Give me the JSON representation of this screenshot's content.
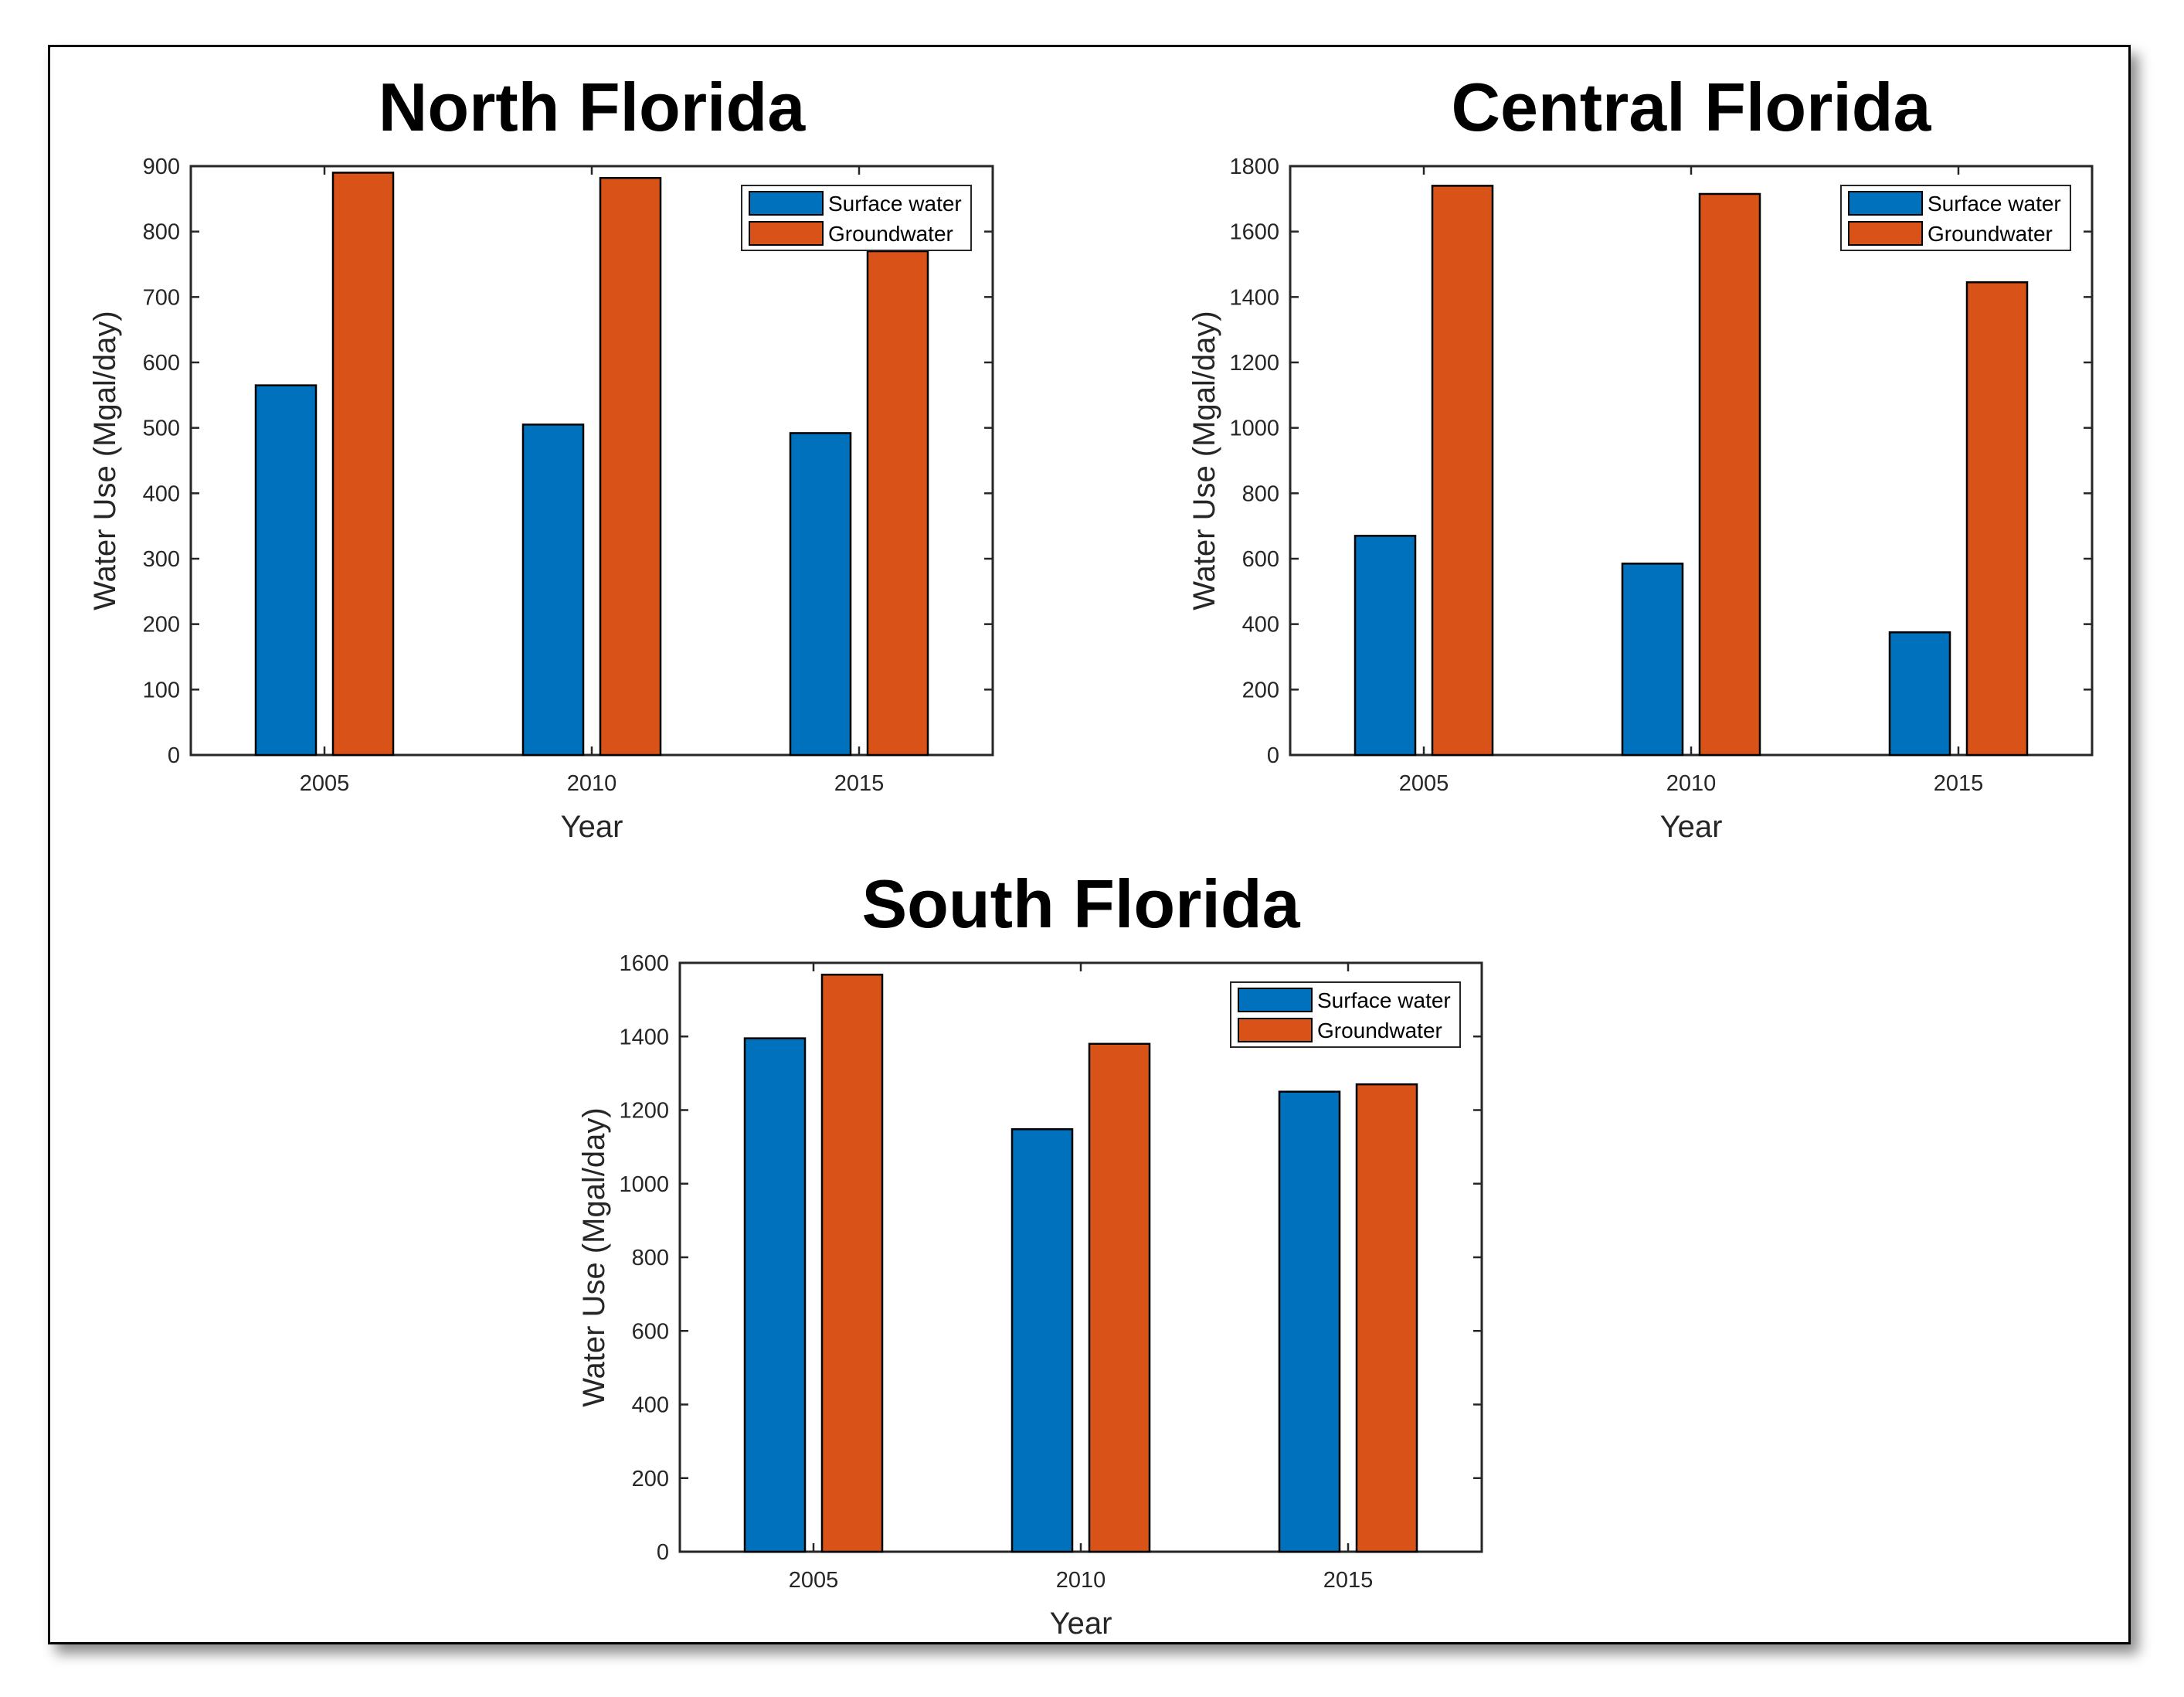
{
  "chart_data": [
    {
      "type": "bar",
      "title": "North Florida",
      "xlabel": "Year",
      "ylabel": "Water Use (Mgal/day)",
      "categories": [
        "2005",
        "2010",
        "2015"
      ],
      "ylim": [
        0,
        900
      ],
      "yticks": [
        0,
        100,
        200,
        300,
        400,
        500,
        600,
        700,
        800,
        900
      ],
      "grid": false,
      "legend_position": "top-right",
      "series": [
        {
          "name": "Surface water",
          "values": [
            565,
            505,
            492
          ]
        },
        {
          "name": "Groundwater",
          "values": [
            890,
            882,
            770
          ]
        }
      ]
    },
    {
      "type": "bar",
      "title": "Central Florida",
      "xlabel": "Year",
      "ylabel": "Water Use (Mgal/day)",
      "categories": [
        "2005",
        "2010",
        "2015"
      ],
      "ylim": [
        0,
        1800
      ],
      "yticks": [
        0,
        200,
        400,
        600,
        800,
        1000,
        1200,
        1400,
        1600,
        1800
      ],
      "grid": false,
      "legend_position": "top-right",
      "series": [
        {
          "name": "Surface water",
          "values": [
            670,
            585,
            375
          ]
        },
        {
          "name": "Groundwater",
          "values": [
            1740,
            1715,
            1445
          ]
        }
      ]
    },
    {
      "type": "bar",
      "title": "South Florida",
      "xlabel": "Year",
      "ylabel": "Water Use (Mgal/day)",
      "categories": [
        "2005",
        "2010",
        "2015"
      ],
      "ylim": [
        0,
        1600
      ],
      "yticks": [
        0,
        200,
        400,
        600,
        800,
        1000,
        1200,
        1400,
        1600
      ],
      "grid": false,
      "legend_position": "top-right",
      "series": [
        {
          "name": "Surface water",
          "values": [
            1395,
            1148,
            1250
          ]
        },
        {
          "name": "Groundwater",
          "values": [
            1568,
            1380,
            1270
          ]
        }
      ]
    }
  ],
  "colors": {
    "surface_water": "#0072BD",
    "groundwater": "#D95319"
  }
}
